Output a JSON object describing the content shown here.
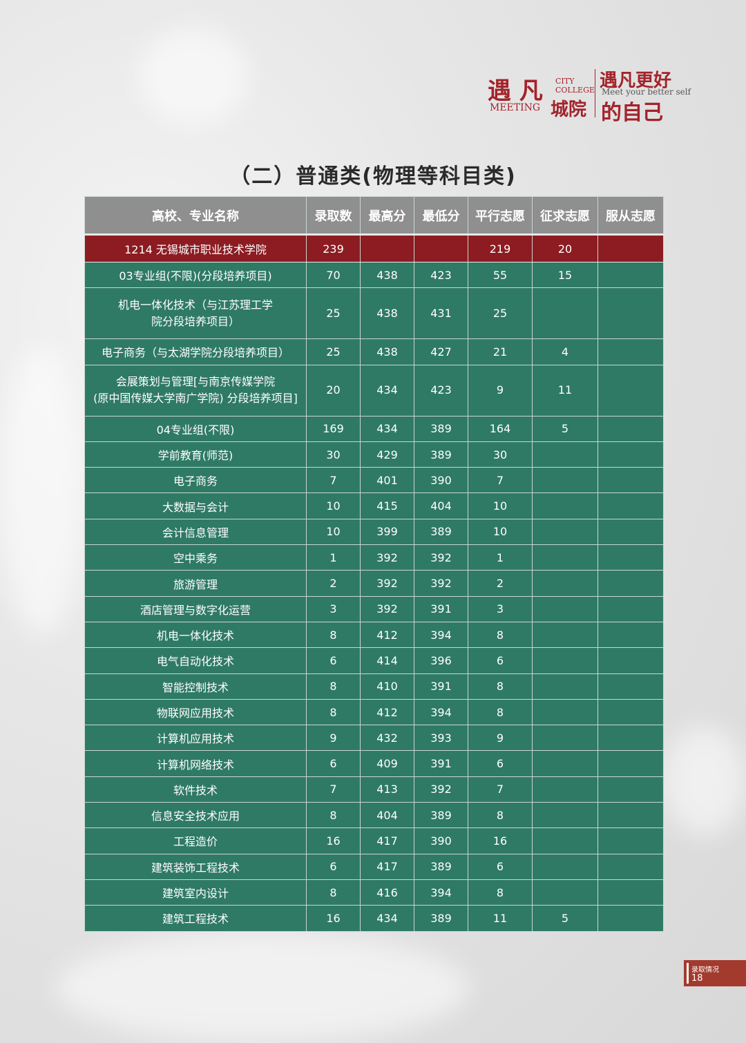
{
  "logo": {
    "meeting_chars": "遇 凡",
    "city": "CITY",
    "college": "COLLEGE",
    "meeting": "MEETING",
    "city_chars": "城院",
    "slogan_top": "遇凡更好",
    "slogan_en": "Meet your better self",
    "slogan_bottom": "的自己"
  },
  "title": "（二）普通类(物理等科目类)",
  "table": {
    "header": [
      "高校、专业名称",
      "录取数",
      "最高分",
      "最低分",
      "平行志愿",
      "征求志愿",
      "服从志愿"
    ],
    "rows": [
      [
        "1214 无锡城市职业技术学院",
        239,
        null,
        null,
        219,
        20,
        null
      ],
      [
        "03专业组(不限)(分段培养项目)",
        70,
        438,
        423,
        55,
        15,
        null
      ],
      [
        [
          "机电一体化技术（与江苏理工学",
          "院分段培养项目）"
        ],
        25,
        438,
        431,
        25,
        null,
        null
      ],
      [
        "电子商务（与太湖学院分段培养项目）",
        25,
        438,
        427,
        21,
        4,
        null
      ],
      [
        [
          "会展策划与管理[与南京传媒学院",
          "(原中国传媒大学南广学院) 分段培养项目]"
        ],
        20,
        434,
        423,
        9,
        11,
        null
      ],
      [
        "04专业组(不限)",
        169,
        434,
        389,
        164,
        5,
        null
      ],
      [
        "学前教育(师范)",
        30,
        429,
        389,
        30,
        null,
        null
      ],
      [
        "电子商务",
        7,
        401,
        390,
        7,
        null,
        null
      ],
      [
        "大数据与会计",
        10,
        415,
        404,
        10,
        null,
        null
      ],
      [
        "会计信息管理",
        10,
        399,
        389,
        10,
        null,
        null
      ],
      [
        "空中乘务",
        1,
        392,
        392,
        1,
        null,
        null
      ],
      [
        "旅游管理",
        2,
        392,
        392,
        2,
        null,
        null
      ],
      [
        "酒店管理与数字化运营",
        3,
        392,
        391,
        3,
        null,
        null
      ],
      [
        "机电一体化技术",
        8,
        412,
        394,
        8,
        null,
        null
      ],
      [
        "电气自动化技术",
        6,
        414,
        396,
        6,
        null,
        null
      ],
      [
        "智能控制技术",
        8,
        410,
        391,
        8,
        null,
        null
      ],
      [
        "物联网应用技术",
        8,
        412,
        394,
        8,
        null,
        null
      ],
      [
        "计算机应用技术",
        9,
        432,
        393,
        9,
        null,
        null
      ],
      [
        "计算机网络技术",
        6,
        409,
        391,
        6,
        null,
        null
      ],
      [
        "软件技术",
        7,
        413,
        392,
        7,
        null,
        null
      ],
      [
        "信息安全技术应用",
        8,
        404,
        389,
        8,
        null,
        null
      ],
      [
        "工程造价",
        16,
        417,
        390,
        16,
        null,
        null
      ],
      [
        "建筑装饰工程技术",
        6,
        417,
        389,
        6,
        null,
        null
      ],
      [
        "建筑室内设计",
        8,
        416,
        394,
        8,
        null,
        null
      ],
      [
        "建筑工程技术",
        16,
        434,
        389,
        11,
        5,
        null
      ]
    ]
  },
  "footer": {
    "section": "录取情况",
    "page": "18"
  }
}
